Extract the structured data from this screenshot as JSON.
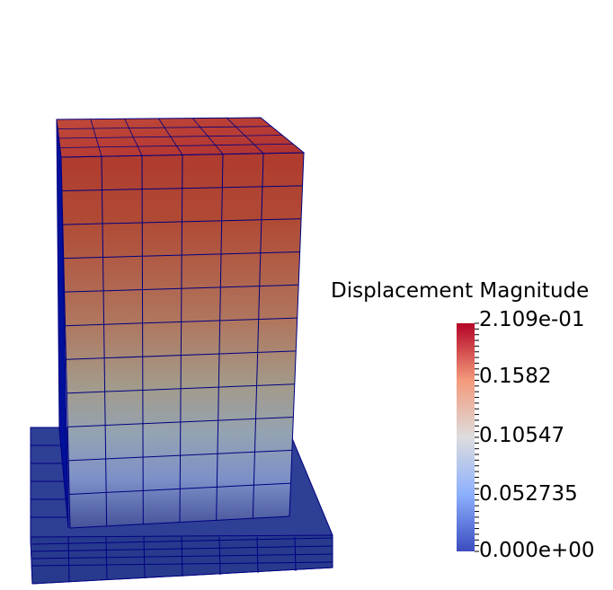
{
  "scalar_bar": {
    "title": "Displacement Magnitude",
    "ticks": [
      "2.109e-01",
      "0.1582",
      "0.10547",
      "0.052735",
      "0.000e+00"
    ],
    "range": [
      0.0,
      0.2109
    ]
  },
  "colors": {
    "low": "#3b4cc0",
    "mid": "#dddddd",
    "high": "#b40426",
    "mesh_edges": "#000080"
  }
}
